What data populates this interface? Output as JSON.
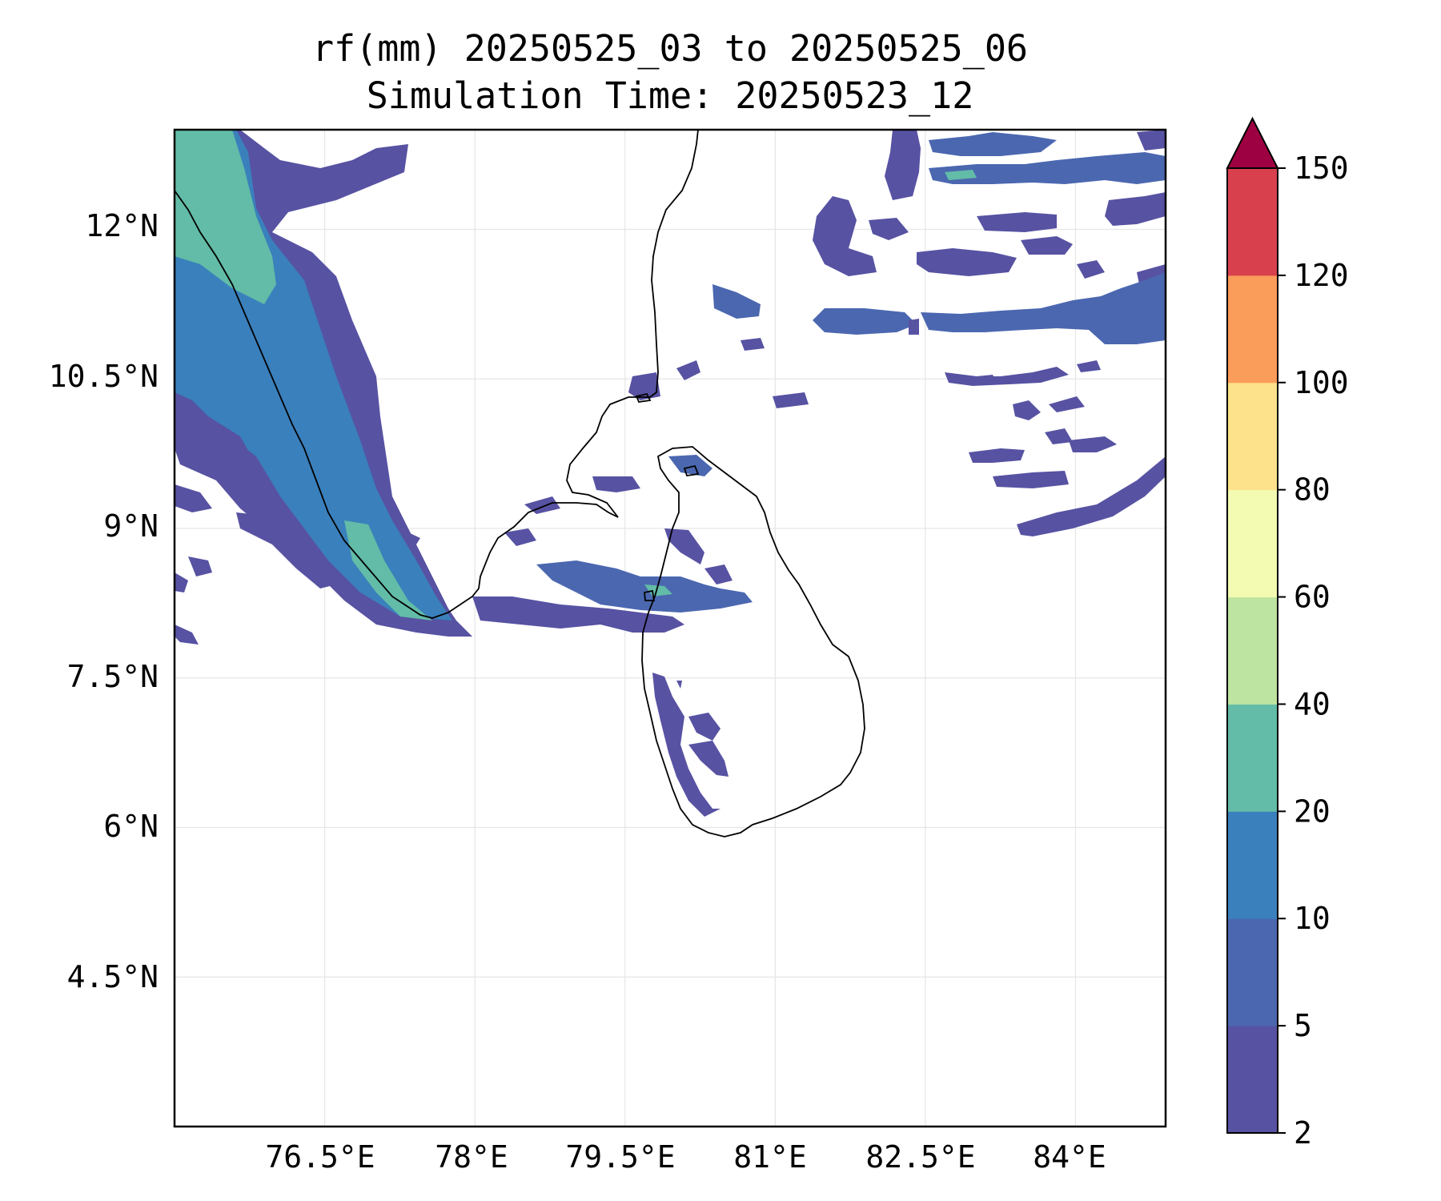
{
  "title_line1": "rf(mm) 20250525_03 to 20250525_06",
  "title_line2": "Simulation Time: 20250523_12",
  "map": {
    "x_ticks": [
      "76.5°E",
      "78°E",
      "79.5°E",
      "81°E",
      "82.5°E",
      "84°E"
    ],
    "y_ticks": [
      "12°N",
      "10.5°N",
      "9°N",
      "7.5°N",
      "6°N",
      "4.5°N"
    ],
    "x_tick_values": [
      76.5,
      78,
      79.5,
      81,
      82.5,
      84
    ],
    "y_tick_values": [
      12,
      10.5,
      9,
      7.5,
      6,
      4.5
    ],
    "lon_range": [
      75.0,
      84.9
    ],
    "lat_range": [
      3.0,
      13.0
    ],
    "grid": true,
    "land_color": "#ffffff",
    "coast_color": "#000000"
  },
  "colorbar": {
    "levels": [
      "2",
      "5",
      "10",
      "20",
      "40",
      "60",
      "80",
      "100",
      "120",
      "150"
    ],
    "colors": [
      "#5752a2",
      "#4b67b0",
      "#3a80bc",
      "#62bca7",
      "#bde4a0",
      "#f2fbb1",
      "#fde18b",
      "#fa9c5a",
      "#d9404e"
    ],
    "extend_color": "#9e0142",
    "extend": "max"
  }
}
